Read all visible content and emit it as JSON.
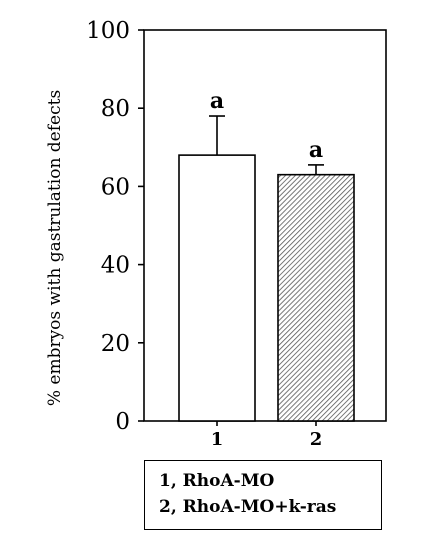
{
  "chart_data": {
    "type": "bar",
    "title": "",
    "xlabel": "",
    "ylabel": "% embryos with gastrulation defects",
    "ylim": [
      0,
      100
    ],
    "yticks": [
      0,
      20,
      40,
      60,
      80,
      100
    ],
    "grid": false,
    "categories": [
      "1",
      "2"
    ],
    "values": [
      68,
      63
    ],
    "errors": [
      10,
      2.5
    ],
    "significance": [
      "a",
      "a"
    ],
    "bar_fills": [
      "solid-white",
      "diagonal-hatch"
    ],
    "legend": {
      "placement": "bottom",
      "items": [
        "1, RhoA-MO",
        "2, RhoA-MO+k-ras"
      ]
    },
    "colors": {
      "axis": "#000000",
      "bar_fill_1": "#ffffff",
      "hatch": "#555555"
    }
  }
}
